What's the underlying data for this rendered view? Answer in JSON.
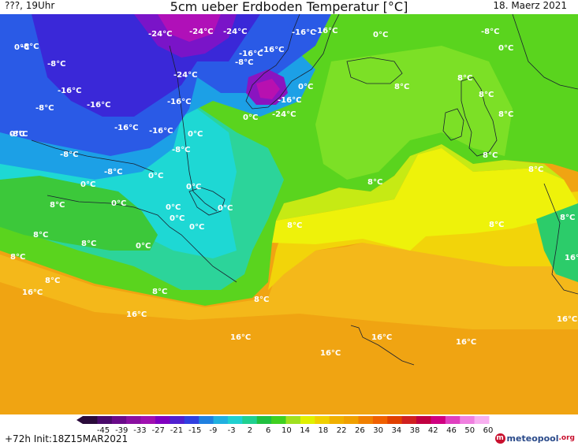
{
  "header": {
    "left_label": "???, 19Uhr",
    "title": "5cm ueber Erdboden Temperatur [°C]",
    "date": "18. Maerz 2021"
  },
  "footer": {
    "run_info": "+72h Init:18Z15MAR2021",
    "logo_text": "meteopool",
    "logo_tld": ".org"
  },
  "colorbar": {
    "ticks": [
      "-45",
      "-39",
      "-33",
      "-27",
      "-21",
      "-15",
      "-9",
      "-3",
      "2",
      "6",
      "10",
      "14",
      "18",
      "22",
      "26",
      "30",
      "34",
      "38",
      "42",
      "46",
      "50",
      "60"
    ],
    "colors": [
      "#2a0a3a",
      "#4a0a6a",
      "#6a0a8a",
      "#8a10a0",
      "#a010b0",
      "#8000c0",
      "#5020d0",
      "#3040e0",
      "#2080e0",
      "#20b0e0",
      "#20d0d0",
      "#20d090",
      "#20c040",
      "#40d020",
      "#a0e020",
      "#e0f000",
      "#f0d000",
      "#f0b000",
      "#f0a000",
      "#f08000",
      "#f06000",
      "#e04000",
      "#d02020",
      "#c00040",
      "#d00080",
      "#e040c0",
      "#f080e0",
      "#f8b0f0"
    ]
  },
  "temperature_labels": [
    "-24°C",
    "-24°C",
    "-24°C",
    "-16°C",
    "-16°C",
    "0°C",
    "-8°C",
    "-8°C",
    "0°C",
    "-16°C",
    "-16°C",
    "-8°C",
    "0°C",
    "-8°C",
    "-24°C",
    "-16°C",
    "-8°C",
    "-16°C",
    "-16°C",
    "-8°C",
    "-16°C",
    "-16°C",
    "0°C",
    "0°C",
    "-16°C",
    "-24°C",
    "0°C",
    "-8°C",
    "8°C",
    "8°C",
    "0°C",
    "-8°C",
    "0°C",
    "-8°C",
    "0°C",
    "0°C",
    "8°C",
    "8°C",
    "8°C",
    "0°C",
    "0°C",
    "0°C",
    "0°C",
    "8°C",
    "8°C",
    "8°C",
    "8°C",
    "0°C",
    "0°C",
    "8°C",
    "8°C",
    "8°C",
    "8°C",
    "8°C",
    "16°C",
    "8°C",
    "8°C",
    "16°C",
    "16°C",
    "16°C",
    "16°C",
    "16°C",
    "16°C",
    "16°C",
    "8°C"
  ]
}
